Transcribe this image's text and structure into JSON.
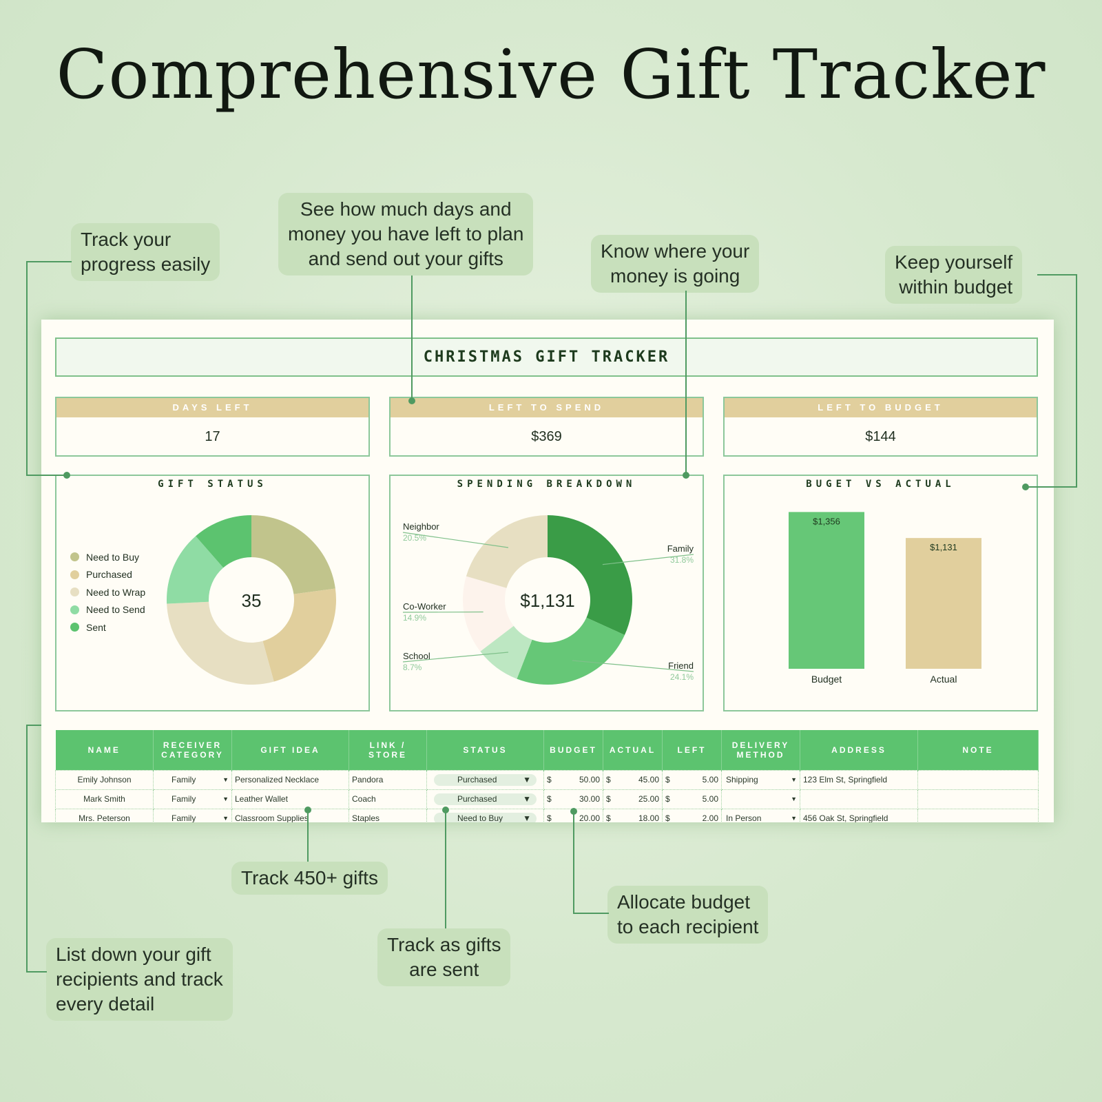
{
  "title": "Comprehensive Gift Tracker",
  "callouts": {
    "progress": "Track your\nprogress easily",
    "days_money": "See how much days and\nmoney you have left to plan\nand send out your gifts",
    "money_going": "Know where your\nmoney is going",
    "budget": "Keep yourself\nwithin budget",
    "gifts": "Track 450+ gifts",
    "sent": "Track as gifts\nare sent",
    "allocate": "Allocate budget\nto each recipient",
    "recipients": "List down your gift\nrecipients and track\nevery detail"
  },
  "sheet": {
    "header": "CHRISTMAS GIFT TRACKER",
    "kpis": [
      {
        "label": "DAYS LEFT",
        "value": "17"
      },
      {
        "label": "LEFT TO SPEND",
        "value": "$369"
      },
      {
        "label": "LEFT TO BUDGET",
        "value": "$144"
      }
    ]
  },
  "colors": {
    "need_to_buy": "#c1c48c",
    "purchased": "#e1cf9d",
    "need_to_wrap": "#e7dfc2",
    "need_to_send": "#8fdca4",
    "sent": "#5cc36f",
    "family": "#3a9c47",
    "friend": "#66c777",
    "school": "#bde7c2",
    "coworker": "#fdf3ec",
    "neighbor": "#e7dfc2",
    "budget_bar": "#66c777",
    "actual_bar": "#e1cf9d"
  },
  "chart_data": [
    {
      "type": "pie",
      "title": "GIFT STATUS",
      "center_label": "35",
      "categories": [
        "Need to Buy",
        "Purchased",
        "Need to Wrap",
        "Need to Send",
        "Sent"
      ],
      "values": [
        8,
        8,
        10,
        5,
        4
      ]
    },
    {
      "type": "pie",
      "title": "SPENDING BREAKDOWN",
      "center_label": "$1,131",
      "categories": [
        "Family",
        "Friend",
        "School",
        "Co-Worker",
        "Neighbor"
      ],
      "values": [
        31.8,
        24.1,
        8.7,
        14.9,
        20.5
      ],
      "labels": [
        "31.8%",
        "24.1%",
        "8.7%",
        "14.9%",
        "20.5%"
      ]
    },
    {
      "type": "bar",
      "title": "BUGET VS ACTUAL",
      "categories": [
        "Budget",
        "Actual"
      ],
      "values": [
        1356,
        1131
      ],
      "labels": [
        "$1,356",
        "$1,131"
      ],
      "ylim": [
        0,
        1400
      ]
    }
  ],
  "table": {
    "headers": [
      "NAME",
      "RECEIVER\nCATEGORY",
      "GIFT IDEA",
      "LINK /\nSTORE",
      "STATUS",
      "BUDGET",
      "ACTUAL",
      "LEFT",
      "DELIVERY\nMETHOD",
      "ADDRESS",
      "NOTE"
    ],
    "rows": [
      {
        "name": "Emily Johnson",
        "category": "Family",
        "gift": "Personalized Necklace",
        "store": "Pandora",
        "status": "Purchased",
        "cur": "$",
        "budget": "50.00",
        "actual": "45.00",
        "left": "5.00",
        "delivery": "Shipping",
        "address": "123 Elm St, Springfield",
        "note": ""
      },
      {
        "name": "Mark Smith",
        "category": "Family",
        "gift": "Leather Wallet",
        "store": "Coach",
        "status": "Purchased",
        "cur": "$",
        "budget": "30.00",
        "actual": "25.00",
        "left": "5.00",
        "delivery": "",
        "address": "",
        "note": ""
      },
      {
        "name": "Mrs. Peterson",
        "category": "Family",
        "gift": "Classroom Supplies",
        "store": "Staples",
        "status": "Need to Buy",
        "cur": "$",
        "budget": "20.00",
        "actual": "18.00",
        "left": "2.00",
        "delivery": "In Person",
        "address": "456 Oak St, Springfield",
        "note": ""
      }
    ]
  }
}
